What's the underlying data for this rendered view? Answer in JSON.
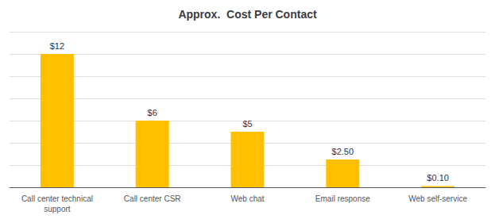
{
  "chart_data": {
    "type": "bar",
    "title": "Approx.  Cost Per Contact",
    "categories": [
      "Call center technical\nsupport",
      "Call center CSR",
      "Web chat",
      "Email response",
      "Web self-service"
    ],
    "values": [
      12,
      6,
      5,
      2.5,
      0.1
    ],
    "value_labels": [
      "$12",
      "$6",
      "$5",
      "$2.50",
      "$0.10"
    ],
    "color": "#FFC000",
    "ylim": [
      0,
      14.0
    ],
    "yticks": [
      0,
      2,
      4,
      6,
      8,
      10,
      12,
      14
    ],
    "grid": true,
    "data_labels": true,
    "tick_labels": "x"
  }
}
